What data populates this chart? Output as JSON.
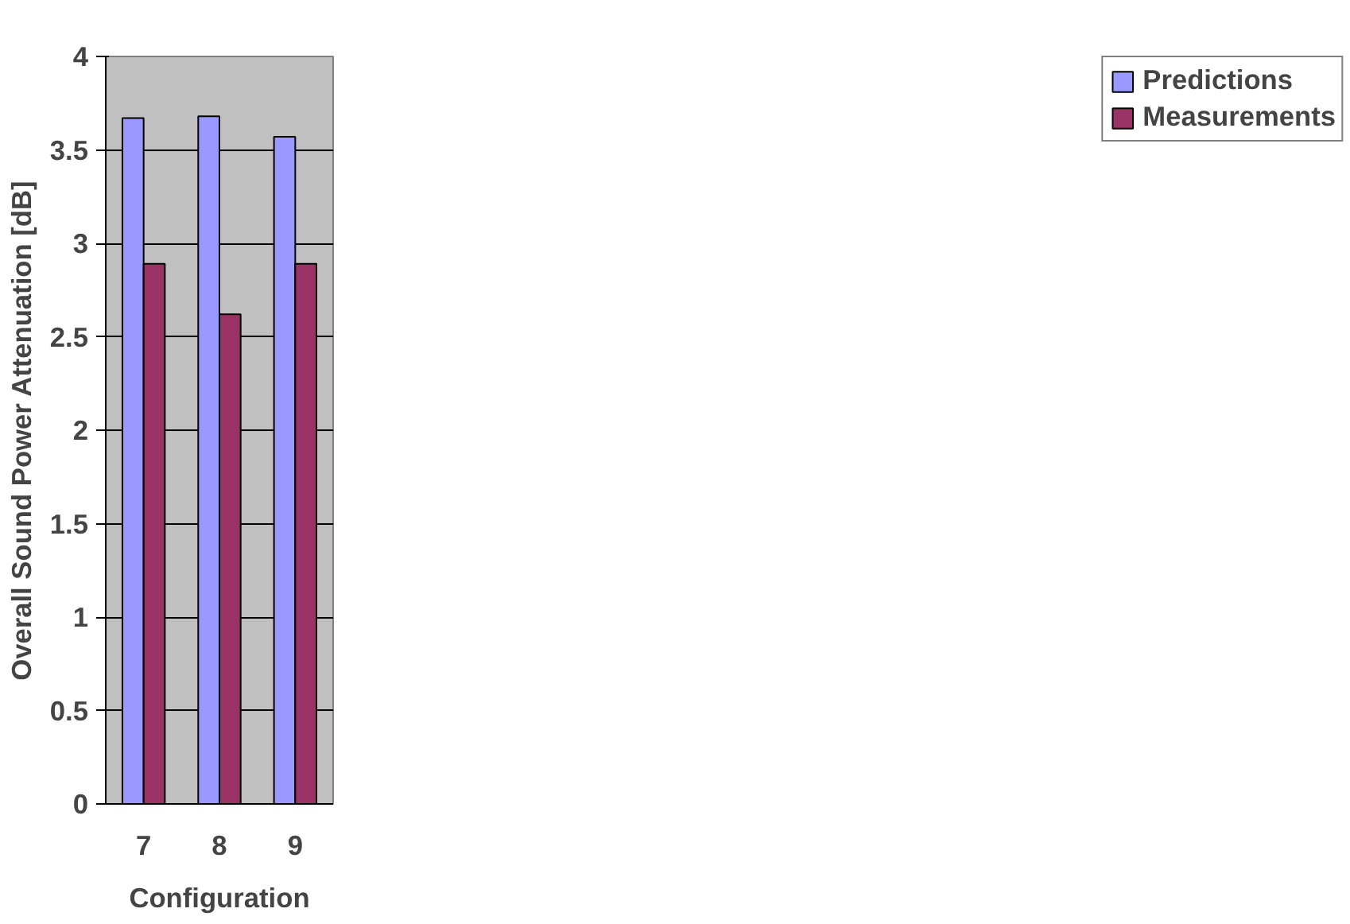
{
  "chart_data": {
    "type": "bar",
    "xlabel": "Configuration",
    "ylabel": "Overall Sound Power Attenuation [dB]",
    "categories": [
      "7",
      "8",
      "9"
    ],
    "series": [
      {
        "name": "Predictions",
        "color": "#9999ff",
        "values": [
          3.67,
          3.68,
          3.57
        ]
      },
      {
        "name": "Measurements",
        "color": "#993366",
        "values": [
          2.89,
          2.62,
          2.89
        ]
      }
    ],
    "ylim": [
      0,
      4
    ],
    "yticks": [
      0,
      0.5,
      1,
      1.5,
      2,
      2.5,
      3,
      3.5,
      4
    ],
    "grid": "y",
    "legend": "right"
  }
}
